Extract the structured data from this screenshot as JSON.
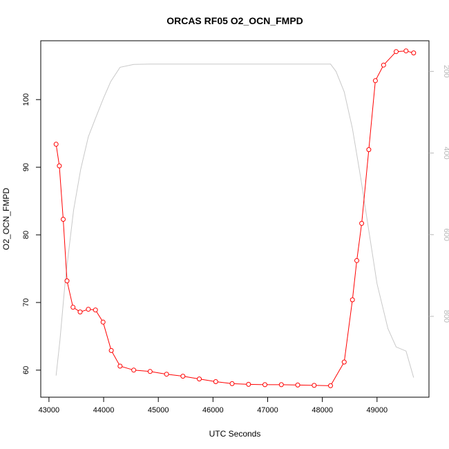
{
  "chart_data": {
    "type": "line",
    "title": "ORCAS RF05 O2_OCN_FMPD",
    "xlabel": "UTC Seconds",
    "ylabel": "O2_OCN_FMPD",
    "xlim": [
      42850,
      49950
    ],
    "ylim": [
      56,
      108.7
    ],
    "y2lim": [
      998,
      125
    ],
    "x_ticks": [
      43000,
      44000,
      45000,
      46000,
      47000,
      48000,
      49000
    ],
    "y_ticks": [
      60,
      70,
      80,
      90,
      100
    ],
    "y2_ticks": [
      200,
      400,
      600,
      800
    ],
    "grid": false,
    "series": [
      {
        "axis": "left",
        "color": "#ff0000",
        "marker": "open-circle",
        "x": [
          43130,
          43190,
          43260,
          43330,
          43440,
          43570,
          43720,
          43850,
          43990,
          44140,
          44300,
          44550,
          44850,
          45150,
          45450,
          45750,
          46050,
          46350,
          46650,
          46950,
          47250,
          47550,
          47850,
          48150,
          48400,
          48550,
          48630,
          48720,
          48850,
          48970,
          49120,
          49350,
          49530,
          49670
        ],
        "y": [
          93.4,
          90.2,
          82.3,
          73.2,
          69.3,
          68.6,
          69.0,
          68.9,
          67.1,
          62.9,
          60.6,
          60.0,
          59.8,
          59.4,
          59.1,
          58.7,
          58.3,
          58.0,
          57.9,
          57.85,
          57.85,
          57.8,
          57.75,
          57.7,
          61.2,
          70.4,
          76.2,
          81.7,
          92.6,
          102.8,
          105.1,
          107.1,
          107.2,
          106.9
        ]
      },
      {
        "axis": "right",
        "color": "#c8c8c8",
        "marker": "none",
        "x": [
          43130,
          43200,
          43300,
          43450,
          43580,
          43720,
          43850,
          44000,
          44130,
          44300,
          44550,
          44850,
          45500,
          46500,
          47500,
          48150,
          48250,
          48400,
          48550,
          48700,
          48850,
          49000,
          49200,
          49350,
          49530,
          49670
        ],
        "y": [
          945,
          860,
          710,
          540,
          440,
          360,
          315,
          265,
          225,
          190,
          183,
          182,
          182,
          182,
          182,
          182,
          200,
          250,
          340,
          460,
          590,
          720,
          830,
          875,
          885,
          950
        ]
      }
    ]
  }
}
